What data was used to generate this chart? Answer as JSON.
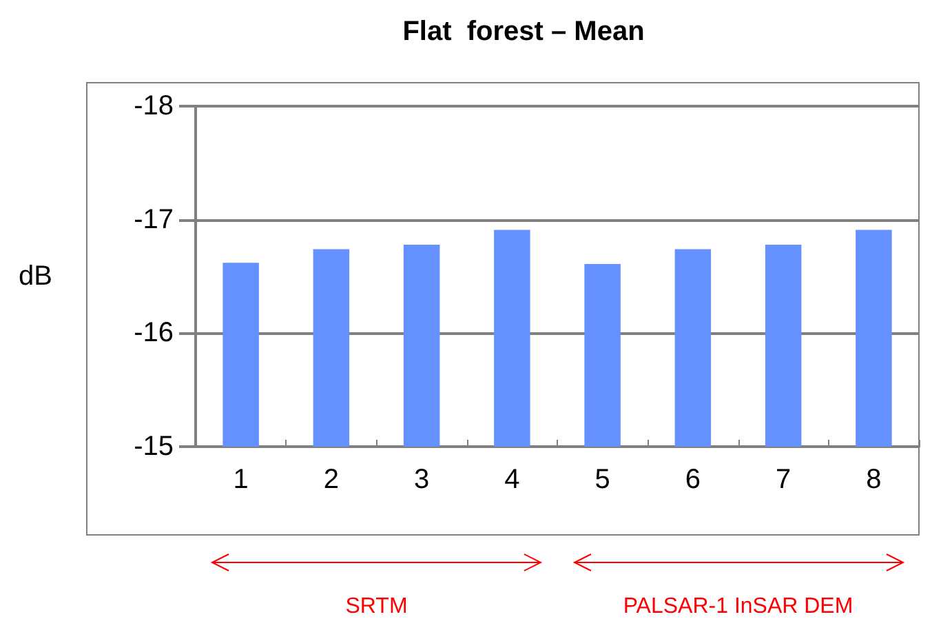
{
  "chart_data": {
    "type": "bar",
    "title": "Flat  forest – Mean",
    "ylabel": "dB",
    "categories": [
      "1",
      "2",
      "3",
      "4",
      "5",
      "6",
      "7",
      "8"
    ],
    "values": [
      -16.62,
      -16.74,
      -16.78,
      -16.91,
      -16.61,
      -16.74,
      -16.78,
      -16.91
    ],
    "color": "#6590ff",
    "ylim": [
      -15,
      -18
    ],
    "yticks": [
      -18,
      -17,
      -16,
      -15
    ],
    "grid": "y",
    "annotations": [
      "SRTM",
      "PALSAR-1 InSAR DEM"
    ]
  }
}
